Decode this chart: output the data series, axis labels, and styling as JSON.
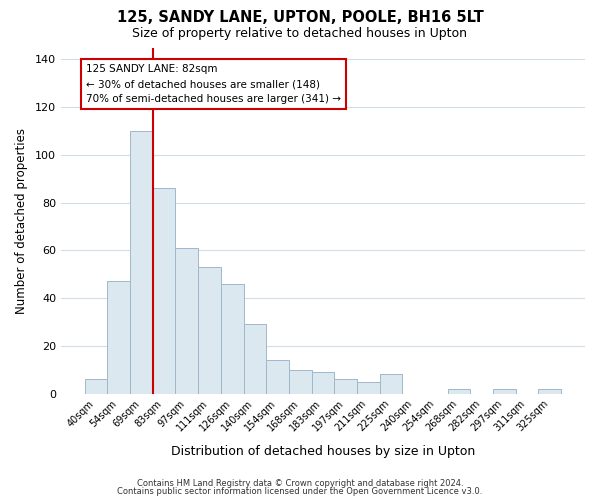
{
  "title": "125, SANDY LANE, UPTON, POOLE, BH16 5LT",
  "subtitle": "Size of property relative to detached houses in Upton",
  "xlabel": "Distribution of detached houses by size in Upton",
  "ylabel": "Number of detached properties",
  "bin_labels": [
    "40sqm",
    "54sqm",
    "69sqm",
    "83sqm",
    "97sqm",
    "111sqm",
    "126sqm",
    "140sqm",
    "154sqm",
    "168sqm",
    "183sqm",
    "197sqm",
    "211sqm",
    "225sqm",
    "240sqm",
    "254sqm",
    "268sqm",
    "282sqm",
    "297sqm",
    "311sqm",
    "325sqm"
  ],
  "bar_values": [
    6,
    47,
    110,
    86,
    61,
    53,
    46,
    29,
    14,
    10,
    9,
    6,
    5,
    8,
    0,
    0,
    2,
    0,
    2,
    0,
    2
  ],
  "bar_color": "#dce8f0",
  "bar_edge_color": "#a0b8cc",
  "vline_color": "#cc0000",
  "vline_bin_index": 3,
  "ylim": [
    0,
    145
  ],
  "yticks": [
    0,
    20,
    40,
    60,
    80,
    100,
    120,
    140
  ],
  "annotation_title": "125 SANDY LANE: 82sqm",
  "annotation_line1": "← 30% of detached houses are smaller (148)",
  "annotation_line2": "70% of semi-detached houses are larger (341) →",
  "annotation_box_color": "#ffffff",
  "annotation_box_edge": "#cc0000",
  "footer1": "Contains HM Land Registry data © Crown copyright and database right 2024.",
  "footer2": "Contains public sector information licensed under the Open Government Licence v3.0.",
  "bg_color": "#ffffff",
  "plot_bg_color": "#ffffff",
  "grid_color": "#d0dce8"
}
